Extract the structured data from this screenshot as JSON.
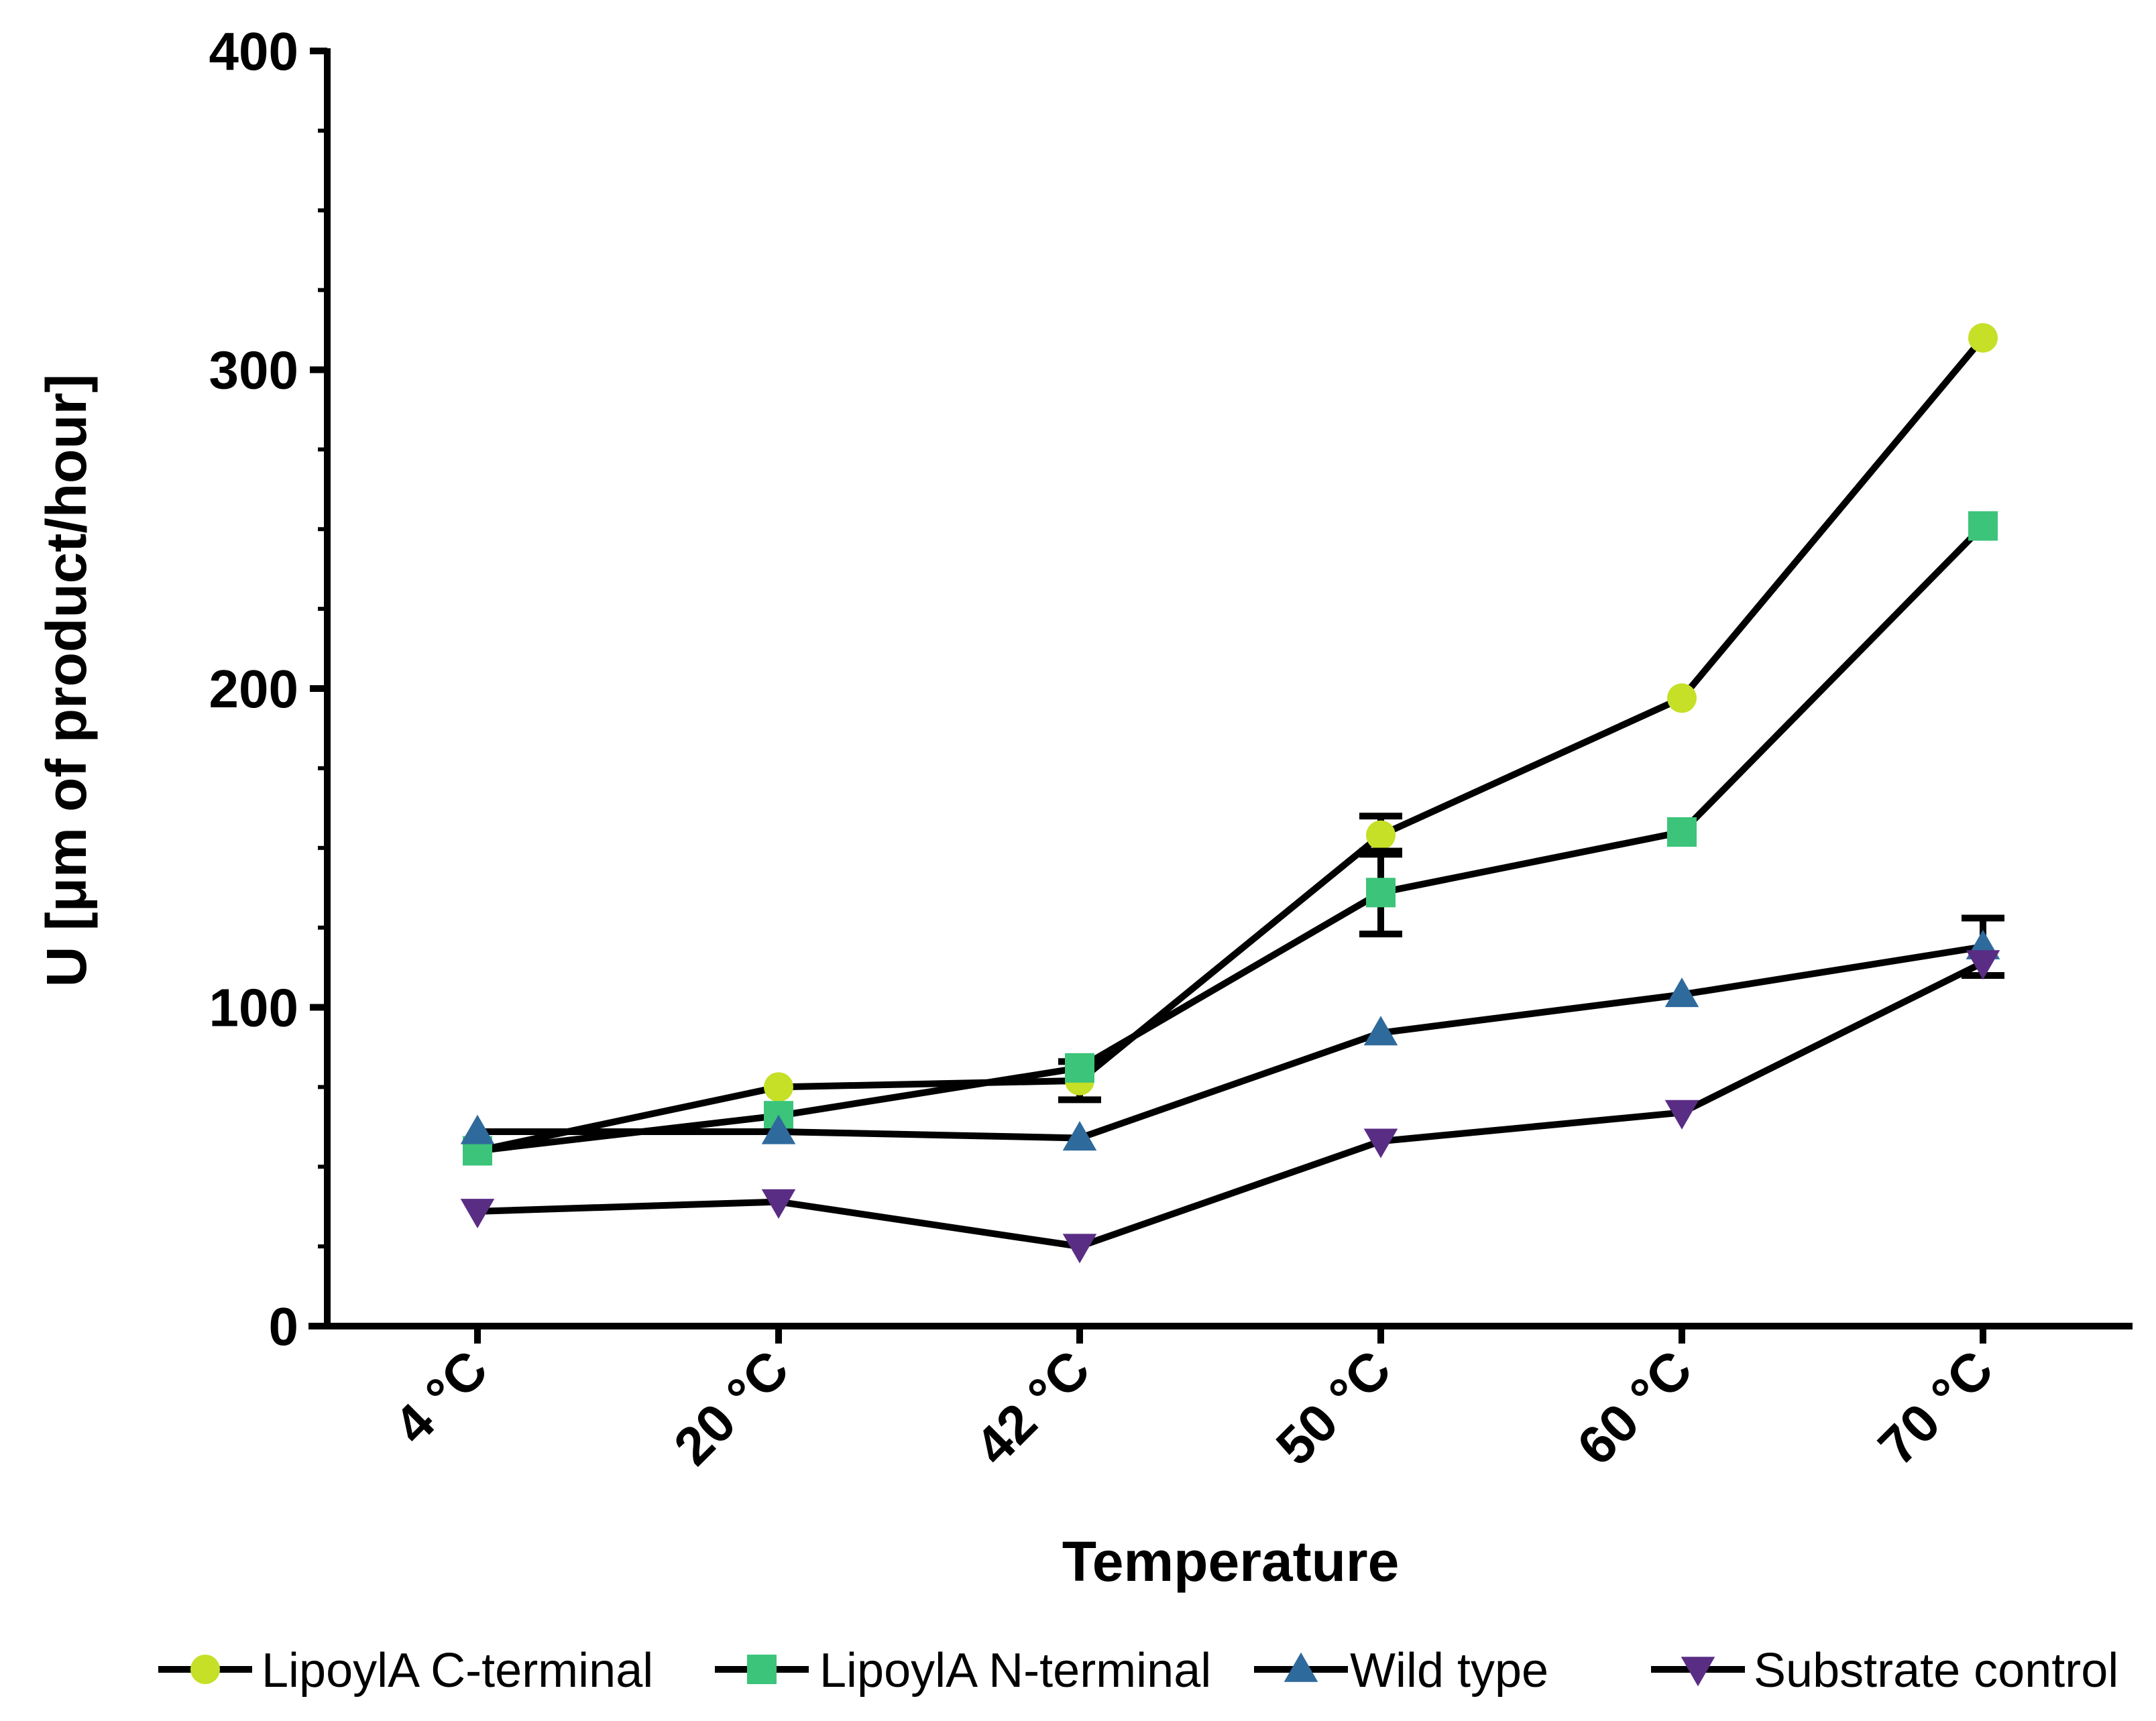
{
  "chart_data": {
    "type": "line",
    "title": "",
    "xlabel": "Temperature",
    "ylabel": "U [μm of product/hour]",
    "categories": [
      "4 °C",
      "20 °C",
      "42 °C",
      "50 °C",
      "60 °C",
      "70 °C"
    ],
    "ylim": [
      0,
      400
    ],
    "yticks": [
      0,
      100,
      200,
      300,
      400
    ],
    "ytick_labels": [
      "0",
      "100",
      "200",
      "300",
      "400"
    ],
    "grid": false,
    "legend_position": "bottom",
    "series": [
      {
        "name": "LipoylA C-terminal",
        "marker": "circle",
        "color": "#c5e026",
        "values": [
          55,
          75,
          77,
          154,
          197,
          310
        ],
        "errors": [
          0,
          0,
          6,
          6,
          0,
          0
        ]
      },
      {
        "name": "LipoylA N-terminal",
        "marker": "square",
        "color": "#3cc47a",
        "values": [
          55,
          66,
          81,
          136,
          155,
          251
        ],
        "errors": [
          0,
          0,
          0,
          13,
          0,
          0
        ]
      },
      {
        "name": "Wild type",
        "marker": "triangle-up",
        "color": "#2f6a9c",
        "values": [
          61,
          61,
          59,
          92,
          104,
          119
        ],
        "errors": [
          0,
          0,
          0,
          0,
          0,
          9
        ]
      },
      {
        "name": "Substrate control",
        "marker": "triangle-down",
        "color": "#5a2d84",
        "values": [
          36,
          39,
          25,
          58,
          67,
          114
        ],
        "errors": [
          0,
          0,
          0,
          0,
          0,
          0
        ]
      }
    ]
  }
}
